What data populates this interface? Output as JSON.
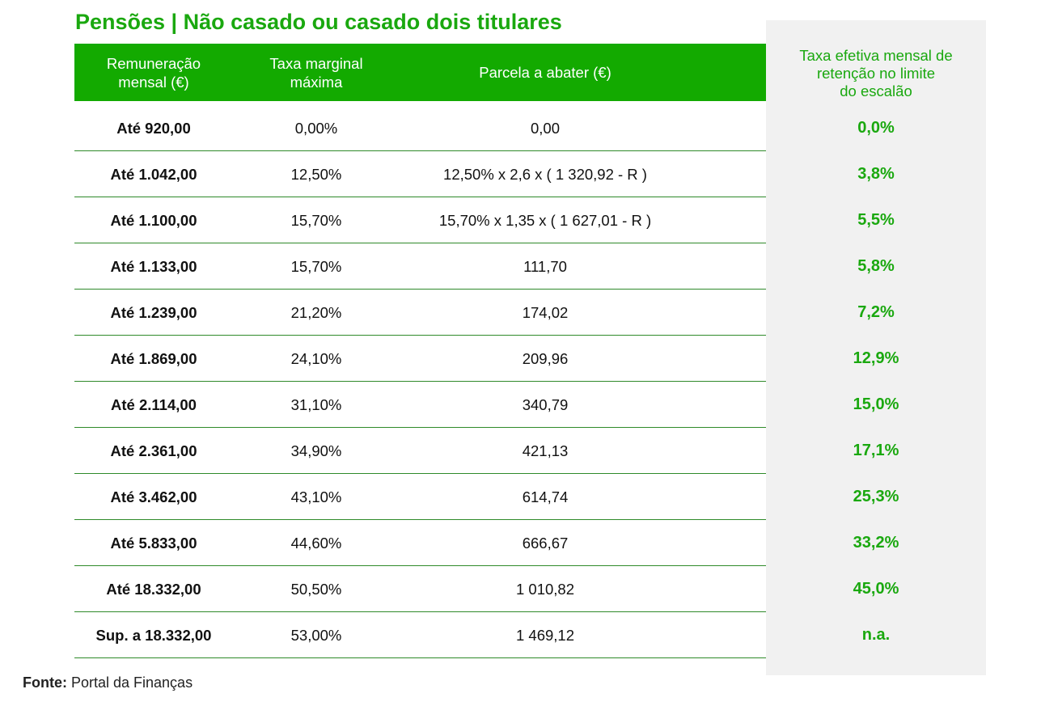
{
  "title": "Pensões | Não casado ou casado dois titulares",
  "header": {
    "col1": [
      "Remuneração",
      "mensal (€)"
    ],
    "col2": [
      "Taxa marginal",
      "máxima"
    ],
    "col3": "Parcela a abater (€)",
    "col4": [
      "Taxa efetiva mensal de",
      "retenção no limite",
      "do escalão"
    ]
  },
  "rows": [
    {
      "rem": "Até 920,00",
      "taxa": "0,00%",
      "parcela": "0,00",
      "efetiva": "0,0%"
    },
    {
      "rem": "Até 1.042,00",
      "taxa": "12,50%",
      "parcela": "12,50% x 2,6 x ( 1 320,92 - R )",
      "efetiva": "3,8%"
    },
    {
      "rem": "Até 1.100,00",
      "taxa": "15,70%",
      "parcela": "15,70% x 1,35 x ( 1 627,01 - R )",
      "efetiva": "5,5%"
    },
    {
      "rem": "Até 1.133,00",
      "taxa": "15,70%",
      "parcela": "111,70",
      "efetiva": "5,8%"
    },
    {
      "rem": "Até 1.239,00",
      "taxa": "21,20%",
      "parcela": "174,02",
      "efetiva": "7,2%"
    },
    {
      "rem": "Até 1.869,00",
      "taxa": "24,10%",
      "parcela": "209,96",
      "efetiva": "12,9%"
    },
    {
      "rem": "Até 2.114,00",
      "taxa": "31,10%",
      "parcela": "340,79",
      "efetiva": "15,0%"
    },
    {
      "rem": "Até 2.361,00",
      "taxa": "34,90%",
      "parcela": "421,13",
      "efetiva": "17,1%"
    },
    {
      "rem": "Até 3.462,00",
      "taxa": "43,10%",
      "parcela": "614,74",
      "efetiva": "25,3%"
    },
    {
      "rem": "Até 5.833,00",
      "taxa": "44,60%",
      "parcela": "666,67",
      "efetiva": "33,2%"
    },
    {
      "rem": "Até 18.332,00",
      "taxa": "50,50%",
      "parcela": "1 010,82",
      "efetiva": "45,0%"
    },
    {
      "rem": "Sup. a  18.332,00",
      "taxa": "53,00%",
      "parcela": "1 469,12",
      "efetiva": "n.a."
    }
  ],
  "footer": {
    "label": "Fonte:",
    "source": " Portal da Finanças"
  },
  "colors": {
    "accent": "#1aa80f",
    "header_bg": "#13aa00",
    "side_panel_bg": "#f1f1f1"
  }
}
